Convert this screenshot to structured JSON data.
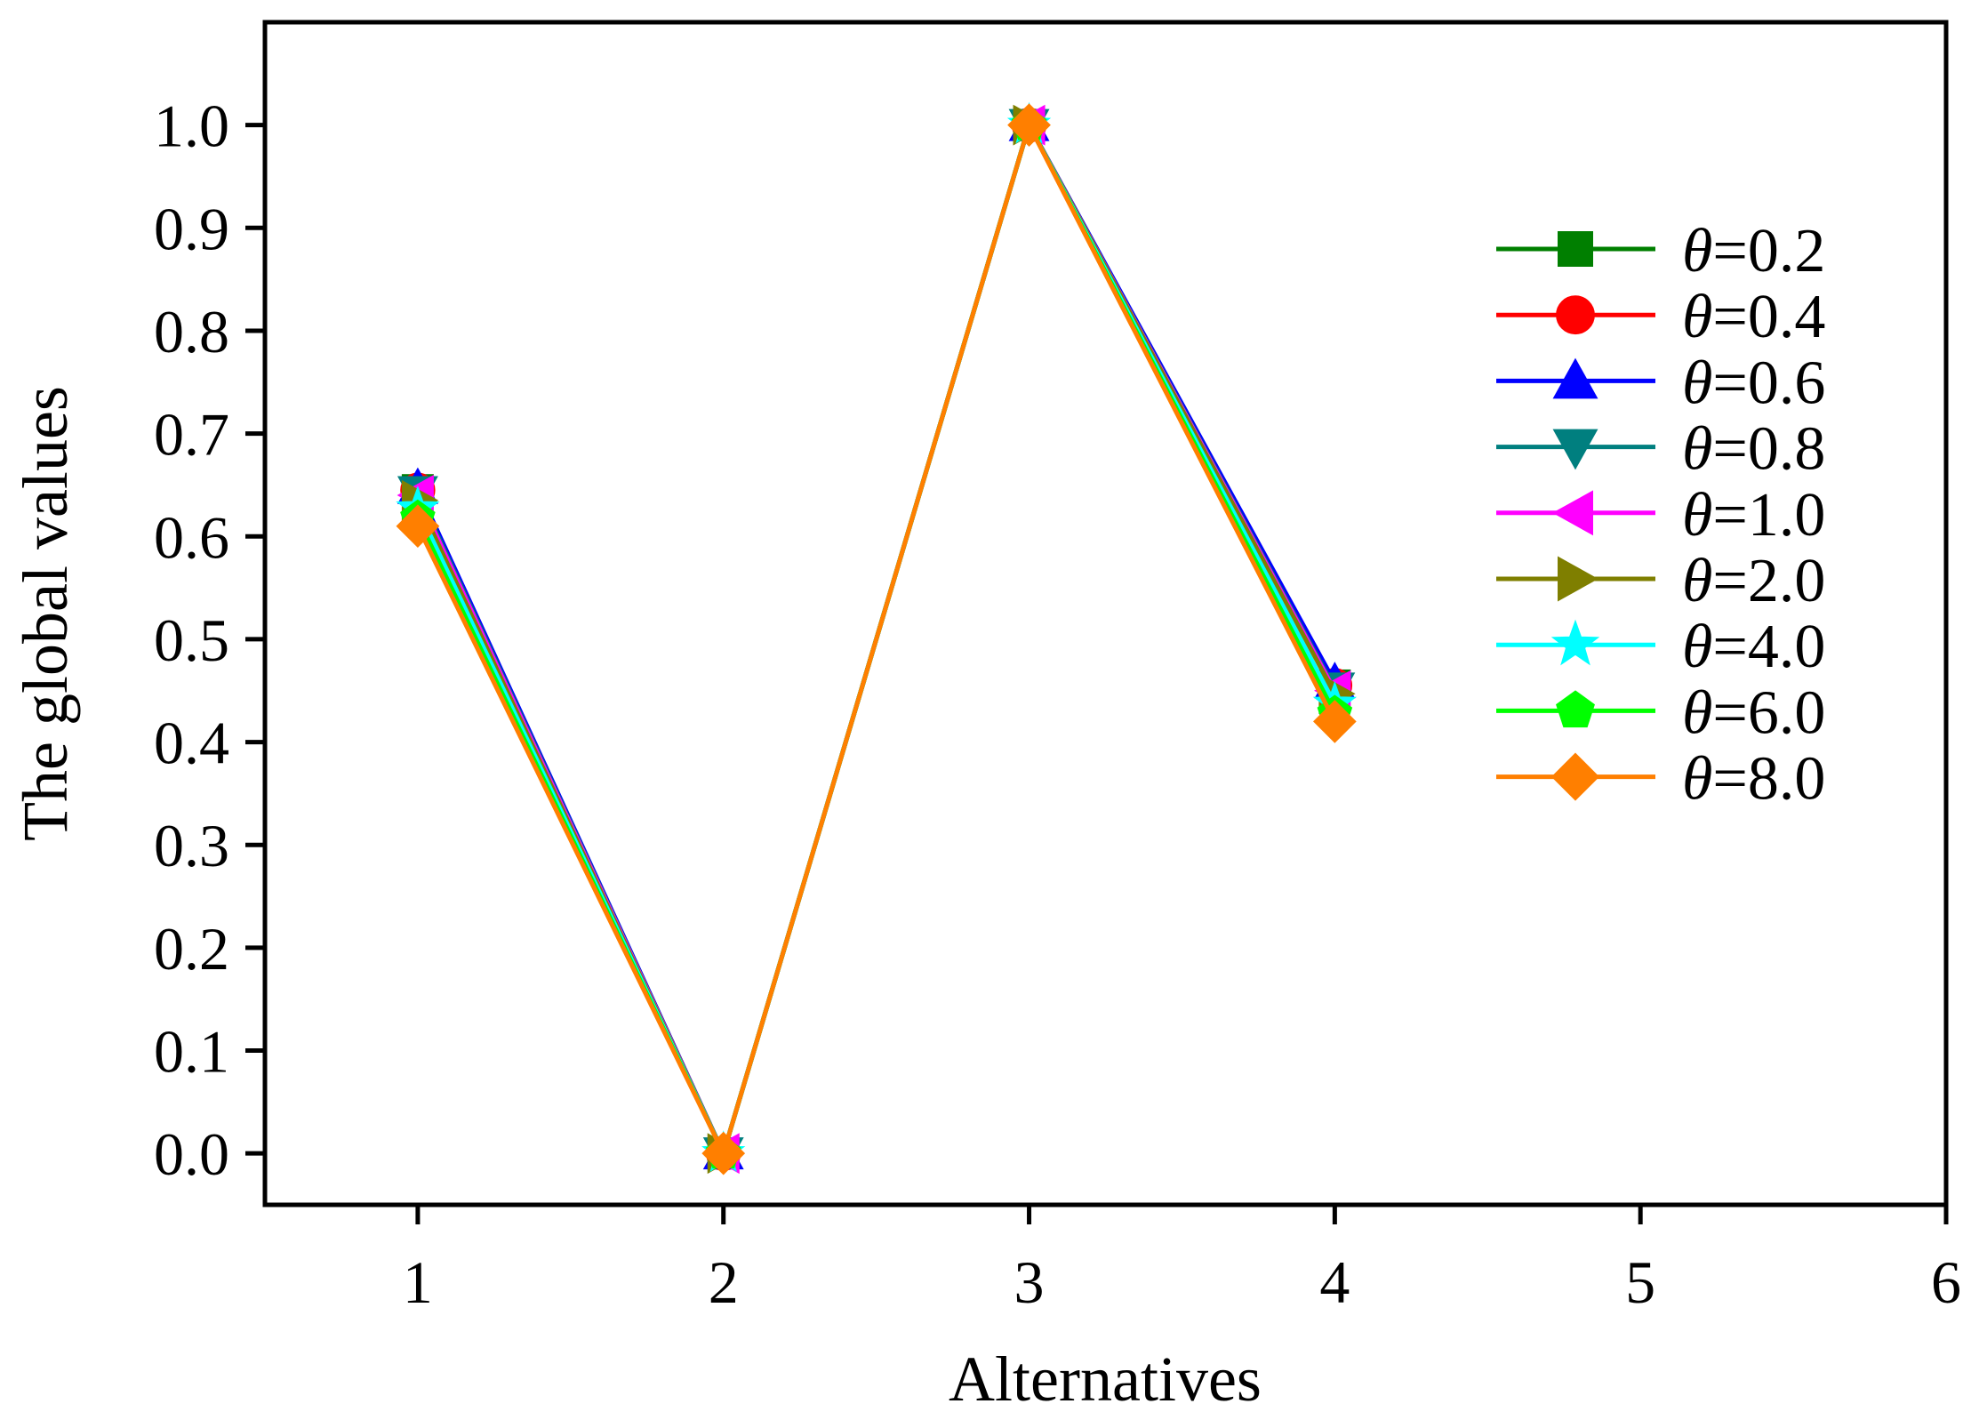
{
  "chart_data": {
    "type": "line",
    "title": "",
    "xlabel": "Alternatives",
    "ylabel": "The global values",
    "xlim": [
      0.5,
      6
    ],
    "ylim": [
      -0.05,
      1.1
    ],
    "xticks": [
      1,
      2,
      3,
      4,
      5,
      6
    ],
    "xtick_labels": [
      "1",
      "2",
      "3",
      "4",
      "5",
      "6"
    ],
    "yticks": [
      0.0,
      0.1,
      0.2,
      0.3,
      0.4,
      0.5,
      0.6,
      0.7,
      0.8,
      0.9,
      1.0
    ],
    "ytick_labels": [
      "0.0",
      "0.1",
      "0.2",
      "0.3",
      "0.4",
      "0.5",
      "0.6",
      "0.7",
      "0.8",
      "0.9",
      "1.0"
    ],
    "x": [
      1,
      2,
      3,
      4
    ],
    "grid": false,
    "legend_position": "right",
    "legend_symbol": "θ",
    "series": [
      {
        "name": "=0.2",
        "color": "#007f00",
        "marker": "square",
        "values": [
          0.645,
          0.0,
          1.0,
          0.455
        ]
      },
      {
        "name": "=0.4",
        "color": "#ff0000",
        "marker": "circle",
        "values": [
          0.645,
          0.0,
          1.0,
          0.455
        ]
      },
      {
        "name": "=0.6",
        "color": "#0000ff",
        "marker": "triangle-up",
        "values": [
          0.647,
          0.0,
          1.0,
          0.458
        ]
      },
      {
        "name": "=0.8",
        "color": "#007f7f",
        "marker": "triangle-down",
        "values": [
          0.643,
          0.0,
          1.0,
          0.452
        ]
      },
      {
        "name": "=1.0",
        "color": "#ff00ff",
        "marker": "triangle-left",
        "values": [
          0.64,
          0.0,
          1.0,
          0.45
        ]
      },
      {
        "name": "=2.0",
        "color": "#7f7f00",
        "marker": "triangle-right",
        "values": [
          0.635,
          0.0,
          1.0,
          0.447
        ]
      },
      {
        "name": "=4.0",
        "color": "#00ffff",
        "marker": "star",
        "values": [
          0.627,
          0.0,
          1.0,
          0.437
        ]
      },
      {
        "name": "=6.0",
        "color": "#00ff00",
        "marker": "pentagon",
        "values": [
          0.618,
          0.0,
          1.0,
          0.428
        ]
      },
      {
        "name": "=8.0",
        "color": "#ff7f00",
        "marker": "diamond",
        "values": [
          0.61,
          0.0,
          1.0,
          0.42
        ]
      }
    ]
  }
}
